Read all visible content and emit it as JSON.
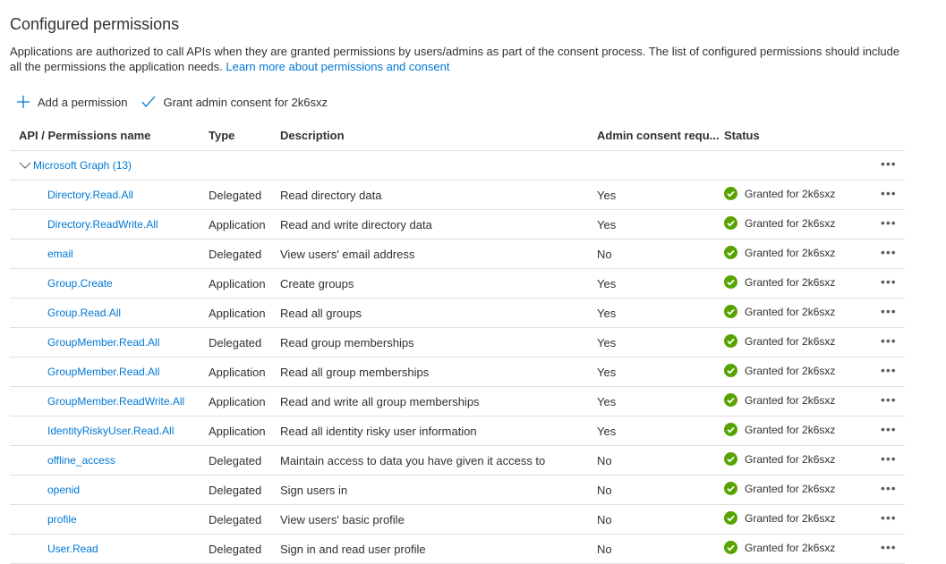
{
  "header": {
    "title": "Configured permissions",
    "description": "Applications are authorized to call APIs when they are granted permissions by users/admins as part of the consent process. The list of configured permissions should include all the permissions the application needs.",
    "learn_more": "Learn more about permissions and consent"
  },
  "toolbar": {
    "add": "Add a permission",
    "grant": "Grant admin consent for 2k6sxz"
  },
  "columns": [
    "API / Permissions name",
    "Type",
    "Description",
    "Admin consent requ...",
    "Status"
  ],
  "group": {
    "label": "Microsoft Graph (13)"
  },
  "status_color": "#57a300",
  "rows": [
    {
      "name": "Directory.Read.All",
      "type": "Delegated",
      "description": "Read directory data",
      "admin": "Yes",
      "status": "Granted for 2k6sxz"
    },
    {
      "name": "Directory.ReadWrite.All",
      "type": "Application",
      "description": "Read and write directory data",
      "admin": "Yes",
      "status": "Granted for 2k6sxz"
    },
    {
      "name": "email",
      "type": "Delegated",
      "description": "View users' email address",
      "admin": "No",
      "status": "Granted for 2k6sxz"
    },
    {
      "name": "Group.Create",
      "type": "Application",
      "description": "Create groups",
      "admin": "Yes",
      "status": "Granted for 2k6sxz"
    },
    {
      "name": "Group.Read.All",
      "type": "Application",
      "description": "Read all groups",
      "admin": "Yes",
      "status": "Granted for 2k6sxz"
    },
    {
      "name": "GroupMember.Read.All",
      "type": "Delegated",
      "description": "Read group memberships",
      "admin": "Yes",
      "status": "Granted for 2k6sxz"
    },
    {
      "name": "GroupMember.Read.All",
      "type": "Application",
      "description": "Read all group memberships",
      "admin": "Yes",
      "status": "Granted for 2k6sxz"
    },
    {
      "name": "GroupMember.ReadWrite.All",
      "type": "Application",
      "description": "Read and write all group memberships",
      "admin": "Yes",
      "status": "Granted for 2k6sxz"
    },
    {
      "name": "IdentityRiskyUser.Read.All",
      "type": "Application",
      "description": "Read all identity risky user information",
      "admin": "Yes",
      "status": "Granted for 2k6sxz"
    },
    {
      "name": "offline_access",
      "type": "Delegated",
      "description": "Maintain access to data you have given it access to",
      "admin": "No",
      "status": "Granted for 2k6sxz"
    },
    {
      "name": "openid",
      "type": "Delegated",
      "description": "Sign users in",
      "admin": "No",
      "status": "Granted for 2k6sxz"
    },
    {
      "name": "profile",
      "type": "Delegated",
      "description": "View users' basic profile",
      "admin": "No",
      "status": "Granted for 2k6sxz"
    },
    {
      "name": "User.Read",
      "type": "Delegated",
      "description": "Sign in and read user profile",
      "admin": "No",
      "status": "Granted for 2k6sxz"
    }
  ]
}
